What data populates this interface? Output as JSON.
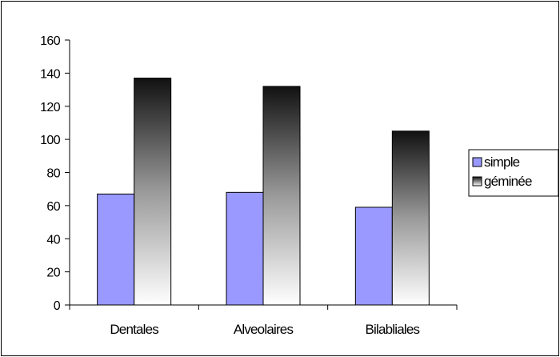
{
  "chart_data": {
    "type": "bar",
    "categories": [
      "Dentales",
      "Alveolaires",
      "Bilabliales"
    ],
    "series": [
      {
        "name": "simple",
        "values": [
          67,
          68,
          59
        ],
        "color": "#9999ff",
        "fill_style": "solid"
      },
      {
        "name": "géminée",
        "values": [
          137,
          132,
          105
        ],
        "color": "#000000",
        "fill_style": "gradient-dark-top-to-white-bottom"
      }
    ],
    "yticks": [
      "0",
      "20",
      "40",
      "60",
      "80",
      "100",
      "120",
      "140",
      "160"
    ],
    "ylim": [
      0,
      160
    ],
    "ytick_step": 20,
    "title": "",
    "xlabel": "",
    "ylabel": "",
    "grid": false,
    "legend_position": "right"
  }
}
